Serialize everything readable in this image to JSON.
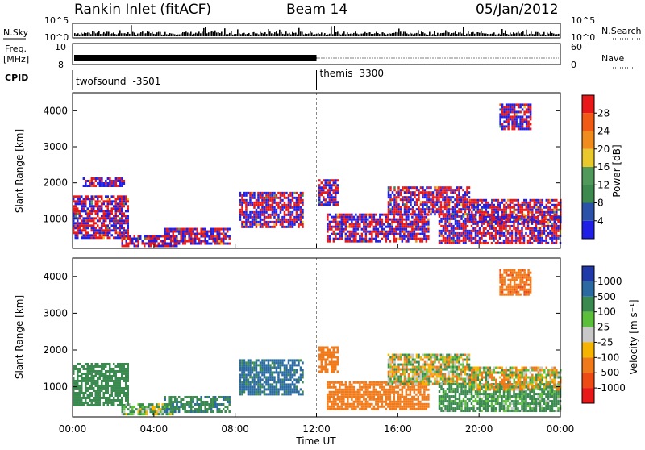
{
  "header": {
    "station": "Rankin Inlet (fitACF)",
    "beam": "Beam 14",
    "date": "05/Jan/2012"
  },
  "left_labels": {
    "nsky": "N.Sky",
    "freq_line1": "Freq.",
    "freq_line2": "[MHz]",
    "cpid": "CPID"
  },
  "right_labels": {
    "nsearch": "N.Search",
    "nave": "Nave"
  },
  "noise_axis": {
    "top": "10^5",
    "bottom": "10^0"
  },
  "freq_axis": {
    "top": "10",
    "bottom": "8"
  },
  "nave_axis": {
    "top": "60",
    "bottom": "0"
  },
  "cpid_programs": [
    {
      "name": "twofsound",
      "id": "-3501",
      "start_hour": 0,
      "end_hour": 12
    },
    {
      "name": "themis",
      "id": "3300",
      "start_hour": 12,
      "end_hour": 24
    }
  ],
  "colors": {
    "power_scale": [
      "#1f1fe6",
      "#2a52a8",
      "#3c8a4e",
      "#4f9a5a",
      "#e8c82a",
      "#f08c1e",
      "#f05a14",
      "#e81818"
    ],
    "velocity_scale": [
      "#1f3aa8",
      "#2a6aa0",
      "#3a8a50",
      "#5cbf3a",
      "#c8c8c8",
      "#f5b400",
      "#f07a1a",
      "#ee4a14",
      "#e81818"
    ]
  },
  "chart_data": [
    {
      "type": "heatmap",
      "panel": "power",
      "ylabel": "Slant Range [km]",
      "xlim": [
        "00:00",
        "24:00"
      ],
      "ylim": [
        180,
        4500
      ],
      "yticks": [
        1000,
        2000,
        3000,
        4000
      ],
      "colorbar": {
        "label": "Power [dB]",
        "ticks": [
          4,
          8,
          12,
          16,
          20,
          24,
          28
        ],
        "range": [
          0,
          32
        ]
      },
      "echo_regions": [
        {
          "t_start": 0.0,
          "t_end": 2.7,
          "r_low": 500,
          "r_high": 1650,
          "power_db": 24
        },
        {
          "t_start": 0.5,
          "t_end": 2.5,
          "r_low": 1900,
          "r_high": 2150,
          "power_db": 12
        },
        {
          "t_start": 2.4,
          "t_end": 5.1,
          "r_low": 250,
          "r_high": 550,
          "power_db": 26
        },
        {
          "t_start": 4.5,
          "t_end": 7.7,
          "r_low": 300,
          "r_high": 750,
          "power_db": 14
        },
        {
          "t_start": 8.2,
          "t_end": 11.3,
          "r_low": 800,
          "r_high": 1750,
          "power_db": 18
        },
        {
          "t_start": 12.1,
          "t_end": 13.0,
          "r_low": 1400,
          "r_high": 2100,
          "power_db": 20
        },
        {
          "t_start": 12.5,
          "t_end": 17.5,
          "r_low": 400,
          "r_high": 1150,
          "power_db": 20
        },
        {
          "t_start": 15.5,
          "t_end": 19.5,
          "r_low": 1100,
          "r_high": 1900,
          "power_db": 28
        },
        {
          "t_start": 18.0,
          "t_end": 24.0,
          "r_low": 350,
          "r_high": 1100,
          "power_db": 30
        },
        {
          "t_start": 19.5,
          "t_end": 24.0,
          "r_low": 900,
          "r_high": 1550,
          "power_db": 22
        },
        {
          "t_start": 21.0,
          "t_end": 22.5,
          "r_low": 3500,
          "r_high": 4200,
          "power_db": 12
        }
      ]
    },
    {
      "type": "heatmap",
      "panel": "velocity",
      "ylabel": "Slant Range [km]",
      "xlabel": "Time UT",
      "xlim": [
        "00:00",
        "24:00"
      ],
      "ylim": [
        180,
        4500
      ],
      "yticks": [
        1000,
        2000,
        3000,
        4000
      ],
      "xticks": [
        "00:00",
        "04:00",
        "08:00",
        "12:00",
        "16:00",
        "20:00",
        "00:00"
      ],
      "colorbar": {
        "label": "Velocity [m s⁻¹]",
        "ticks": [
          1000,
          500,
          100,
          25,
          -25,
          -100,
          -500,
          -1000
        ]
      },
      "echo_regions": [
        {
          "t_start": 0.0,
          "t_end": 2.7,
          "r_low": 500,
          "r_high": 1650,
          "velocity": 300
        },
        {
          "t_start": 2.4,
          "t_end": 5.1,
          "r_low": 250,
          "r_high": 550,
          "velocity": 100
        },
        {
          "t_start": 4.5,
          "t_end": 7.7,
          "r_low": 300,
          "r_high": 750,
          "velocity": 400
        },
        {
          "t_start": 8.2,
          "t_end": 11.3,
          "r_low": 800,
          "r_high": 1750,
          "velocity": 600
        },
        {
          "t_start": 12.1,
          "t_end": 13.0,
          "r_low": 1400,
          "r_high": 2100,
          "velocity": -300
        },
        {
          "t_start": 12.5,
          "t_end": 17.5,
          "r_low": 400,
          "r_high": 1150,
          "velocity": -300
        },
        {
          "t_start": 15.5,
          "t_end": 19.5,
          "r_low": 1100,
          "r_high": 1900,
          "velocity": 0
        },
        {
          "t_start": 18.0,
          "t_end": 24.0,
          "r_low": 350,
          "r_high": 1100,
          "velocity": 200
        },
        {
          "t_start": 19.5,
          "t_end": 24.0,
          "r_low": 900,
          "r_high": 1550,
          "velocity": -50
        },
        {
          "t_start": 21.0,
          "t_end": 22.5,
          "r_low": 3500,
          "r_high": 4200,
          "velocity": -400
        }
      ]
    }
  ]
}
